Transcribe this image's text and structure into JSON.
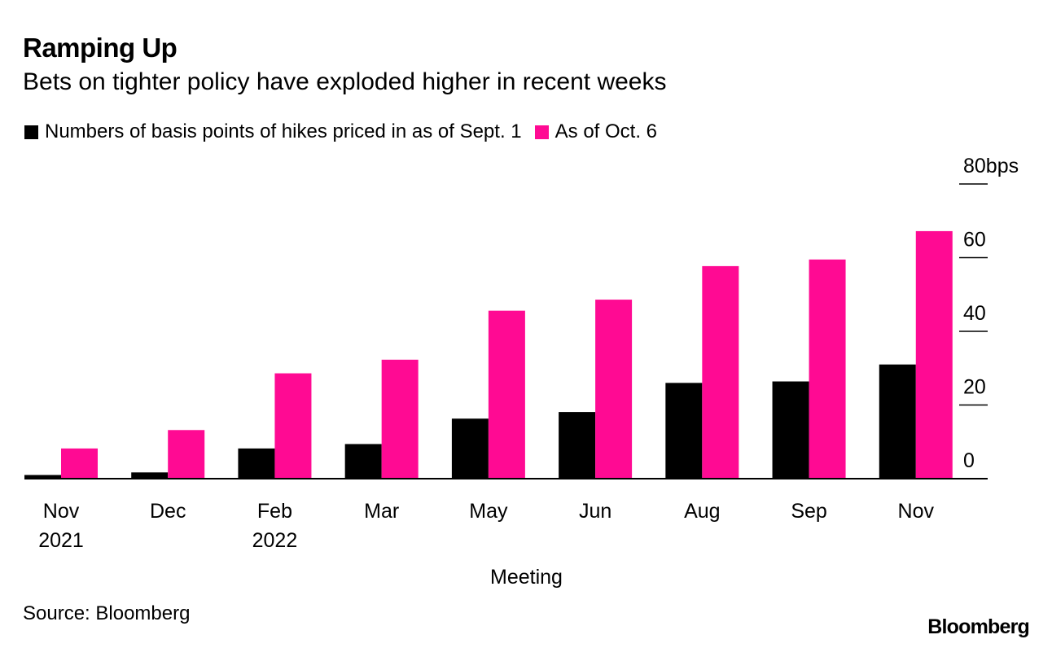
{
  "header": {
    "title": "Ramping Up",
    "subtitle": "Bets on tighter policy have exploded higher in recent weeks"
  },
  "footer": {
    "source": "Source: Bloomberg",
    "brand": "Bloomberg"
  },
  "chart_data": {
    "type": "bar",
    "categories": [
      [
        "Nov",
        "2021"
      ],
      [
        "Dec"
      ],
      [
        "Feb",
        "2022"
      ],
      [
        "Mar"
      ],
      [
        "May"
      ],
      [
        "Jun"
      ],
      [
        "Aug"
      ],
      [
        "Sep"
      ],
      [
        "Nov"
      ]
    ],
    "series": [
      {
        "name": "Numbers of basis points of hikes priced in as of Sept. 1",
        "color": "#000000",
        "values": [
          1,
          1.7,
          8.2,
          9.4,
          16.3,
          18.1,
          26,
          26.4,
          31
        ]
      },
      {
        "name": "As of Oct. 6",
        "color": "#ff0a93",
        "values": [
          8.2,
          13.2,
          28.6,
          32.3,
          45.6,
          48.6,
          57.7,
          59.5,
          67.2
        ]
      }
    ],
    "xlabel": "Meeting",
    "ylabel": "",
    "ylim": [
      0,
      80
    ],
    "yticks": [
      0,
      20,
      40,
      60,
      80
    ],
    "y_unit": "bps",
    "y_axis_side": "right",
    "legend_position": "top-left",
    "grid": false
  }
}
